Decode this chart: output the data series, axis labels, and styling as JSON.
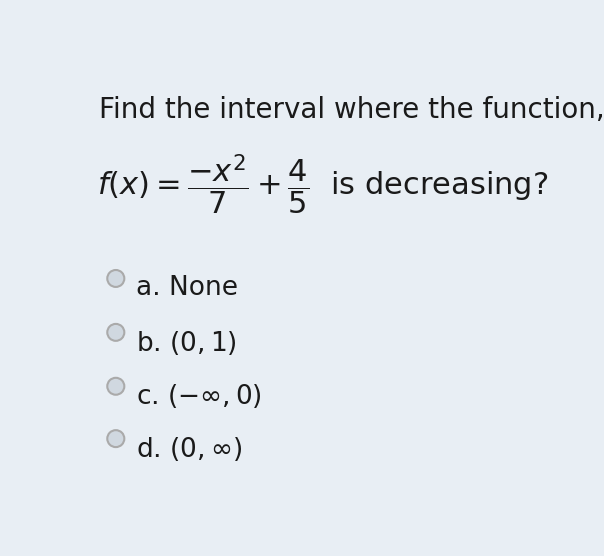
{
  "background_color": "#e8eef4",
  "title_line1": "Find the interval where the function,",
  "text_color": "#1a1a1a",
  "circle_edge_color": "#aaaaaa",
  "circle_fill_color": "#d0d8e0",
  "title_fontsize": 20,
  "formula_fontsize": 22,
  "option_fontsize": 19,
  "fig_width": 6.04,
  "fig_height": 5.56,
  "option_labels": [
    "a. None",
    "b. (0,1)",
    "c. (−∞, 0)",
    "d. (0, ∞)"
  ],
  "option_latex": [
    "a. None",
    "b. $(0,1)$",
    "c. $(-\\infty, 0)$",
    "d. $(0, \\infty)$"
  ]
}
